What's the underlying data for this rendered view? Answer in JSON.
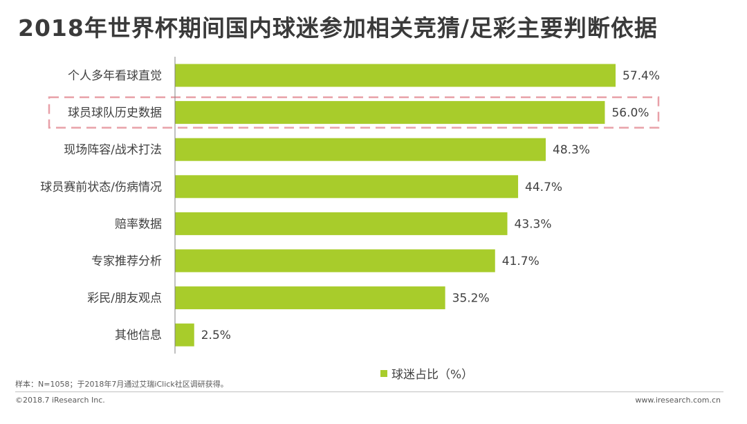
{
  "title": "2018年世界杯期间国内球迷参加相关竞猜/足彩主要判断依据",
  "chart_data": {
    "type": "bar",
    "orientation": "horizontal",
    "categories": [
      "个人多年看球直觉",
      "球员球队历史数据",
      "现场阵容/战术打法",
      "球员赛前状态/伤病情况",
      "赔率数据",
      "专家推荐分析",
      "彩民/朋友观点",
      "其他信息"
    ],
    "values": [
      57.4,
      56.0,
      48.3,
      44.7,
      43.3,
      41.7,
      35.2,
      2.5
    ],
    "value_labels": [
      "57.4%",
      "56.0%",
      "48.3%",
      "44.7%",
      "43.3%",
      "41.7%",
      "35.2%",
      "2.5%"
    ],
    "highlighted_category": "球员球队历史数据",
    "series": [
      {
        "name": "球迷占比（%）",
        "values": [
          57.4,
          56.0,
          48.3,
          44.7,
          43.3,
          41.7,
          35.2,
          2.5
        ]
      }
    ],
    "xlim": [
      0,
      57.4
    ],
    "legend_position": "bottom",
    "grid": false,
    "colors": {
      "bar": "#a8cc2b",
      "highlight_box": "#e8a0a8",
      "axis": "#808080"
    }
  },
  "legend": {
    "label": "球迷占比（%）"
  },
  "footnote": "样本：N=1058；于2018年7月通过艾瑞iClick社区调研获得。",
  "copyright": "©2018.7 iResearch Inc.",
  "website": "www.iresearch.com.cn"
}
